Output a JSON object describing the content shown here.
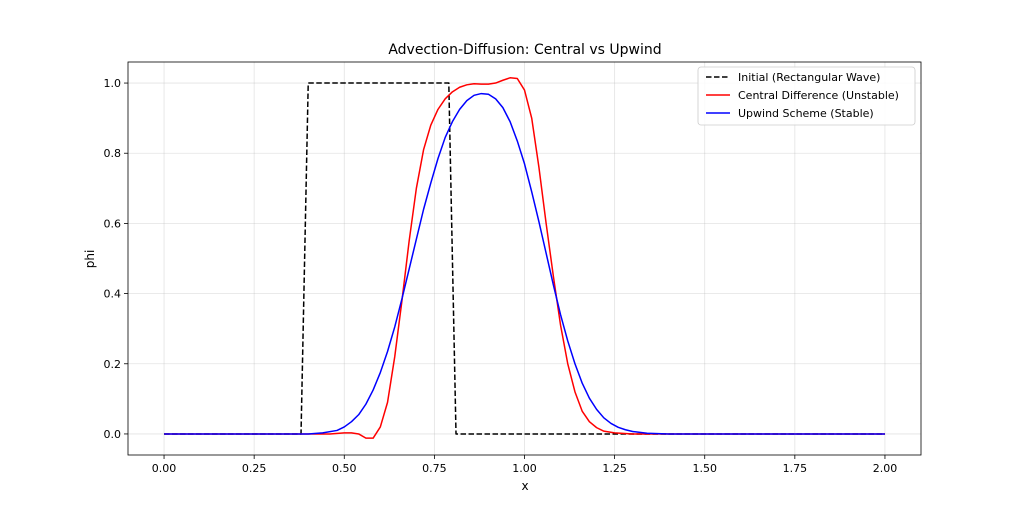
{
  "chart_data": {
    "type": "line",
    "title": "Advection-Diffusion: Central vs Upwind",
    "xlabel": "x",
    "ylabel": "phi",
    "xlim": [
      -0.1,
      2.1
    ],
    "ylim": [
      -0.06,
      1.06
    ],
    "xticks": [
      0.0,
      0.25,
      0.5,
      0.75,
      1.0,
      1.25,
      1.5,
      1.75,
      2.0
    ],
    "xtick_labels": [
      "0.00",
      "0.25",
      "0.50",
      "0.75",
      "1.00",
      "1.25",
      "1.50",
      "1.75",
      "2.00"
    ],
    "yticks": [
      0.0,
      0.2,
      0.4,
      0.6,
      0.8,
      1.0
    ],
    "ytick_labels": [
      "0.0",
      "0.2",
      "0.4",
      "0.6",
      "0.8",
      "1.0"
    ],
    "grid": true,
    "legend_position": "top-right",
    "series": [
      {
        "name": "Initial (Rectangular Wave)",
        "color": "#000000",
        "dash": "dashed",
        "x": [
          0.0,
          0.38,
          0.4,
          0.79,
          0.81,
          2.0
        ],
        "y": [
          0.0,
          0.0,
          1.0,
          1.0,
          0.0,
          0.0
        ]
      },
      {
        "name": "Central Difference (Unstable)",
        "color": "#ff0000",
        "dash": "solid",
        "x": [
          0.0,
          0.4,
          0.46,
          0.5,
          0.52,
          0.54,
          0.56,
          0.58,
          0.6,
          0.62,
          0.64,
          0.66,
          0.68,
          0.7,
          0.72,
          0.74,
          0.76,
          0.78,
          0.8,
          0.82,
          0.84,
          0.86,
          0.88,
          0.9,
          0.92,
          0.94,
          0.96,
          0.98,
          1.0,
          1.02,
          1.04,
          1.06,
          1.08,
          1.1,
          1.12,
          1.14,
          1.16,
          1.18,
          1.2,
          1.22,
          1.25,
          1.3,
          1.4,
          2.0
        ],
        "y": [
          0.0,
          0.0,
          0.0,
          0.003,
          0.003,
          0.0,
          -0.012,
          -0.012,
          0.02,
          0.09,
          0.22,
          0.38,
          0.55,
          0.7,
          0.81,
          0.88,
          0.925,
          0.955,
          0.975,
          0.988,
          0.995,
          0.998,
          0.997,
          0.997,
          1.0,
          1.008,
          1.015,
          1.013,
          0.98,
          0.9,
          0.76,
          0.6,
          0.45,
          0.31,
          0.2,
          0.12,
          0.065,
          0.035,
          0.018,
          0.008,
          0.003,
          0.0,
          0.0,
          0.0
        ]
      },
      {
        "name": "Upwind Scheme (Stable)",
        "color": "#0000ff",
        "dash": "solid",
        "x": [
          0.0,
          0.4,
          0.44,
          0.48,
          0.5,
          0.52,
          0.54,
          0.56,
          0.58,
          0.6,
          0.62,
          0.64,
          0.66,
          0.68,
          0.7,
          0.72,
          0.74,
          0.76,
          0.78,
          0.8,
          0.82,
          0.84,
          0.86,
          0.88,
          0.9,
          0.92,
          0.94,
          0.96,
          0.98,
          1.0,
          1.02,
          1.04,
          1.06,
          1.08,
          1.1,
          1.12,
          1.14,
          1.16,
          1.18,
          1.2,
          1.22,
          1.24,
          1.26,
          1.28,
          1.3,
          1.34,
          1.4,
          1.5,
          2.0
        ],
        "y": [
          0.0,
          0.0,
          0.003,
          0.01,
          0.02,
          0.035,
          0.055,
          0.085,
          0.125,
          0.175,
          0.235,
          0.305,
          0.385,
          0.47,
          0.555,
          0.64,
          0.715,
          0.785,
          0.845,
          0.89,
          0.925,
          0.95,
          0.965,
          0.97,
          0.968,
          0.955,
          0.93,
          0.89,
          0.835,
          0.77,
          0.69,
          0.605,
          0.515,
          0.425,
          0.34,
          0.265,
          0.2,
          0.145,
          0.102,
          0.07,
          0.046,
          0.03,
          0.019,
          0.012,
          0.007,
          0.002,
          0.0,
          0.0,
          0.0
        ]
      }
    ]
  }
}
